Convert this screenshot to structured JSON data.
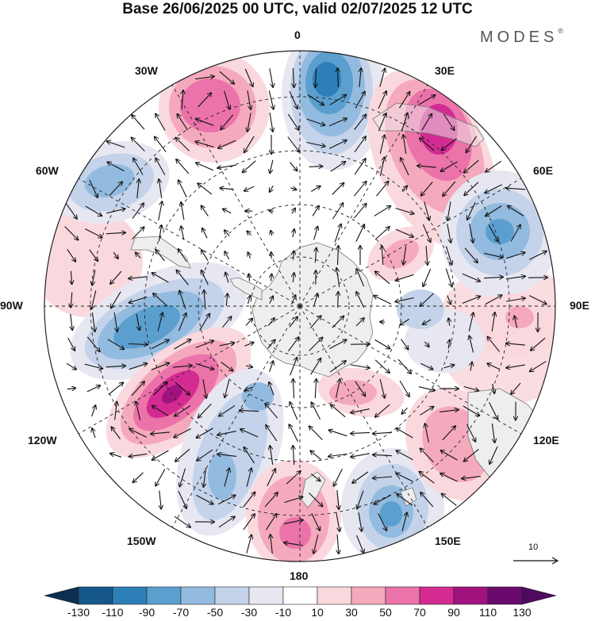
{
  "header": {
    "title": "Base 26/06/2025 00 UTC, valid 02/07/2025 12 UTC",
    "brand": "MODES",
    "brand_mark": "®"
  },
  "longitude_labels": {
    "lon0": "0",
    "lon30e": "30E",
    "lon60e": "60E",
    "lon90e": "90E",
    "lon120e": "120E",
    "lon150e": "150E",
    "lon180": "180",
    "lon150w": "150W",
    "lon120w": "120W",
    "lon90w": "90W",
    "lon60w": "60W",
    "lon30w": "30W"
  },
  "reference_vector": {
    "value": "10"
  },
  "colorbar": {
    "labels": [
      "-130",
      "-110",
      "-90",
      "-70",
      "-50",
      "-30",
      "-10",
      "10",
      "30",
      "50",
      "70",
      "90",
      "110",
      "130"
    ],
    "colors": [
      "#0d2e4f",
      "#15578a",
      "#2d7fb8",
      "#5b9fcf",
      "#93bbdf",
      "#c4d3ea",
      "#e7e7f2",
      "#ffffff",
      "#fad9de",
      "#f5a9bd",
      "#eb73a9",
      "#d42b93",
      "#a0137f",
      "#6a0a6e",
      "#4d0a5f"
    ]
  },
  "anomaly_colors": {
    "neg_strong": "#2d7fb8",
    "neg_mid": "#5b9fcf",
    "neg_weak": "#93bbdf",
    "neg_faint": "#c4d3ea",
    "neg_trace": "#e7e7f2",
    "pos_trace": "#fad9de",
    "pos_weak": "#f5a9bd",
    "pos_mid": "#eb73a9",
    "pos_strong": "#d42b93",
    "pos_peak": "#a0137f",
    "land": "#eeeeee"
  }
}
